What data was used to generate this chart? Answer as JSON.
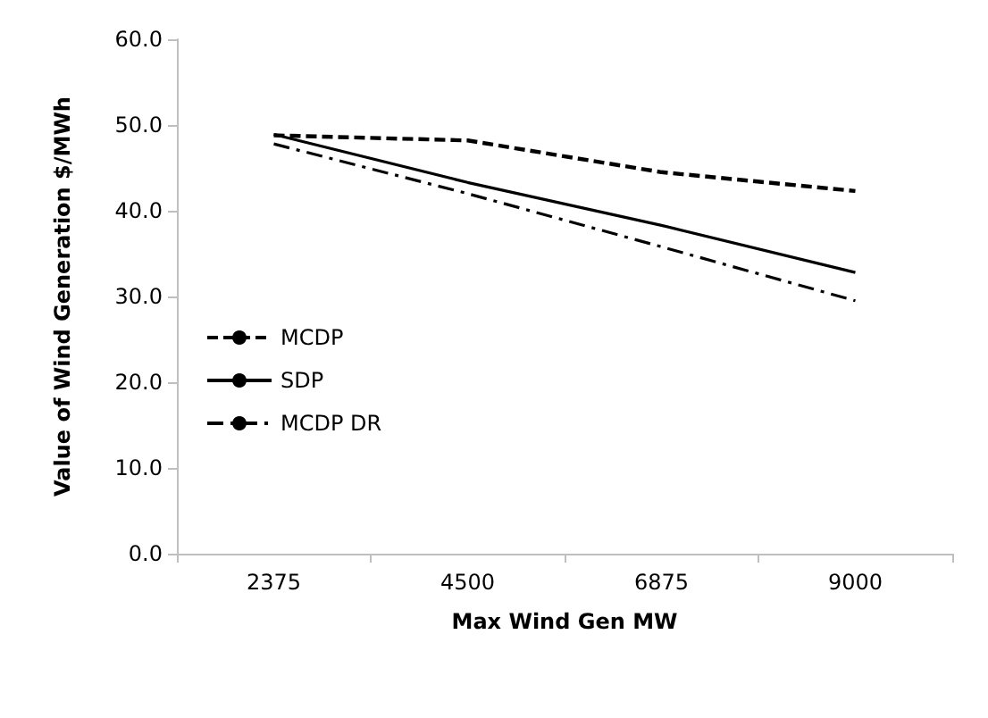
{
  "chart_data": {
    "type": "line",
    "xlabel": "Max Wind Gen MW",
    "ylabel": "Value of Wind Generation $/MWh",
    "categories": [
      "2375",
      "4500",
      "6875",
      "9000"
    ],
    "series": [
      {
        "name": "MCDP",
        "color": "#000000",
        "line_style": "dashed",
        "values": [
          48.8,
          48.2,
          44.5,
          42.3
        ]
      },
      {
        "name": "SDP",
        "color": "#000000",
        "line_style": "solid",
        "values": [
          48.9,
          43.3,
          38.3,
          32.8
        ]
      },
      {
        "name": "MCDP DR",
        "color": "#000000",
        "line_style": "dashdot",
        "values": [
          47.8,
          42.0,
          35.8,
          29.5
        ]
      }
    ],
    "ylim": [
      0,
      60
    ],
    "yticks": [
      {
        "value": 0,
        "label": "0.0"
      },
      {
        "value": 10,
        "label": "10.0"
      },
      {
        "value": 20,
        "label": "20.0"
      },
      {
        "value": 30,
        "label": "30.0"
      },
      {
        "value": 40,
        "label": "40.0"
      },
      {
        "value": 50,
        "label": "50.0"
      },
      {
        "value": 60,
        "label": "60.0"
      }
    ],
    "grid": false,
    "legend": "left",
    "marker": "none"
  }
}
